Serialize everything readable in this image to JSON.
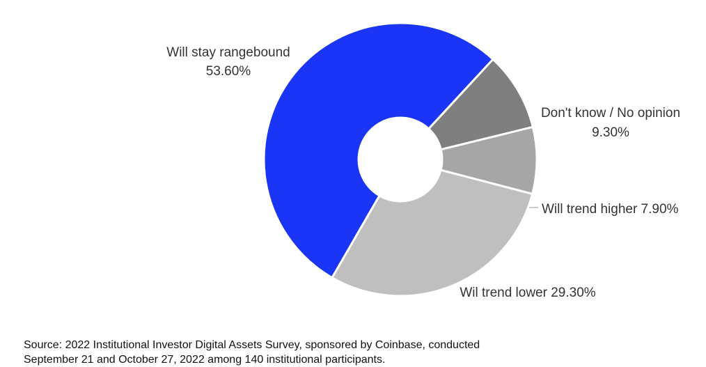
{
  "chart_data": {
    "type": "pie",
    "donut": true,
    "slices": [
      {
        "label": "Will stay rangebound",
        "value_label": "53.60%",
        "value": 53.6,
        "color": "#1a35f5"
      },
      {
        "label": "Don't know / No opinion",
        "value_label": "9.30%",
        "value": 9.3,
        "color": "#7f7f7f"
      },
      {
        "label": "Will trend higher 7.90%",
        "value_label": "",
        "value": 7.9,
        "color": "#a6a6a6"
      },
      {
        "label": "Wil trend lower 29.30%",
        "value_label": "",
        "value": 29.3,
        "color": "#bfbfbf"
      }
    ]
  },
  "footer": {
    "source_line1": "Source: 2022 Institutional Investor Digital Assets Survey, sponsored by Coinbase, conducted",
    "source_line2": "September 21 and October 27, 2022 among 140 institutional participants."
  }
}
